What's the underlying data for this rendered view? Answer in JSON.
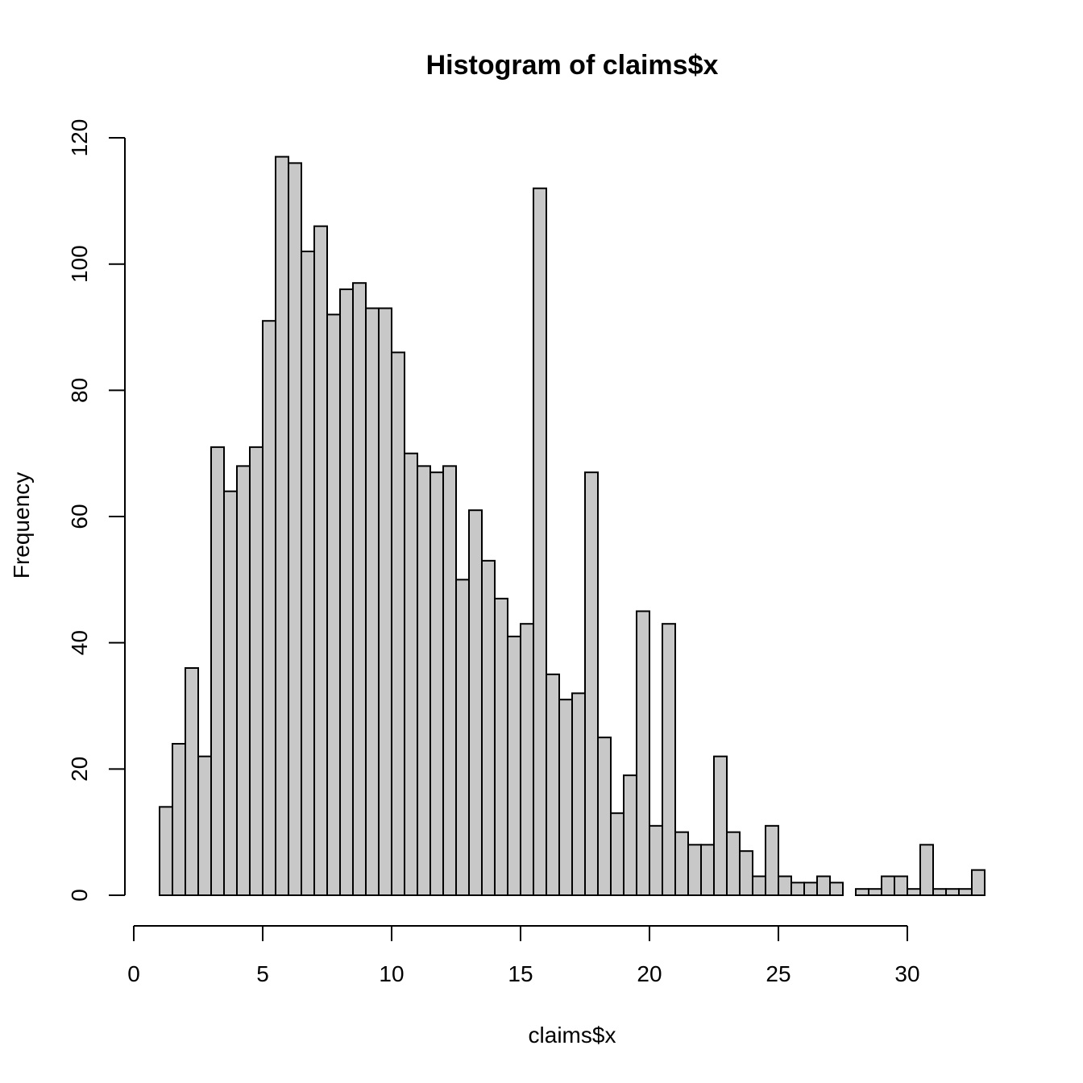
{
  "chart_data": {
    "type": "bar",
    "title": "Histogram of claims$x",
    "xlabel": "claims$x",
    "ylabel": "Frequency",
    "bar_fill": "#c8c8c8",
    "bar_stroke": "#000000",
    "xlim": [
      0,
      33
    ],
    "ylim": [
      0,
      120
    ],
    "x_ticks": [
      0,
      5,
      10,
      15,
      20,
      25,
      30
    ],
    "y_ticks": [
      0,
      20,
      40,
      60,
      80,
      100,
      120
    ],
    "bin_start": 1,
    "bin_width": 0.5,
    "values": [
      14,
      24,
      36,
      22,
      71,
      64,
      68,
      71,
      91,
      117,
      116,
      102,
      106,
      92,
      96,
      97,
      93,
      93,
      86,
      70,
      68,
      67,
      68,
      50,
      61,
      53,
      47,
      41,
      43,
      112,
      35,
      31,
      32,
      67,
      25,
      13,
      19,
      45,
      11,
      43,
      10,
      8,
      8,
      22,
      10,
      7,
      3,
      11,
      3,
      2,
      2,
      3,
      2,
      0,
      1,
      1,
      3,
      3,
      1,
      8,
      1,
      1,
      1,
      4
    ],
    "grid": false,
    "legend": "none"
  }
}
